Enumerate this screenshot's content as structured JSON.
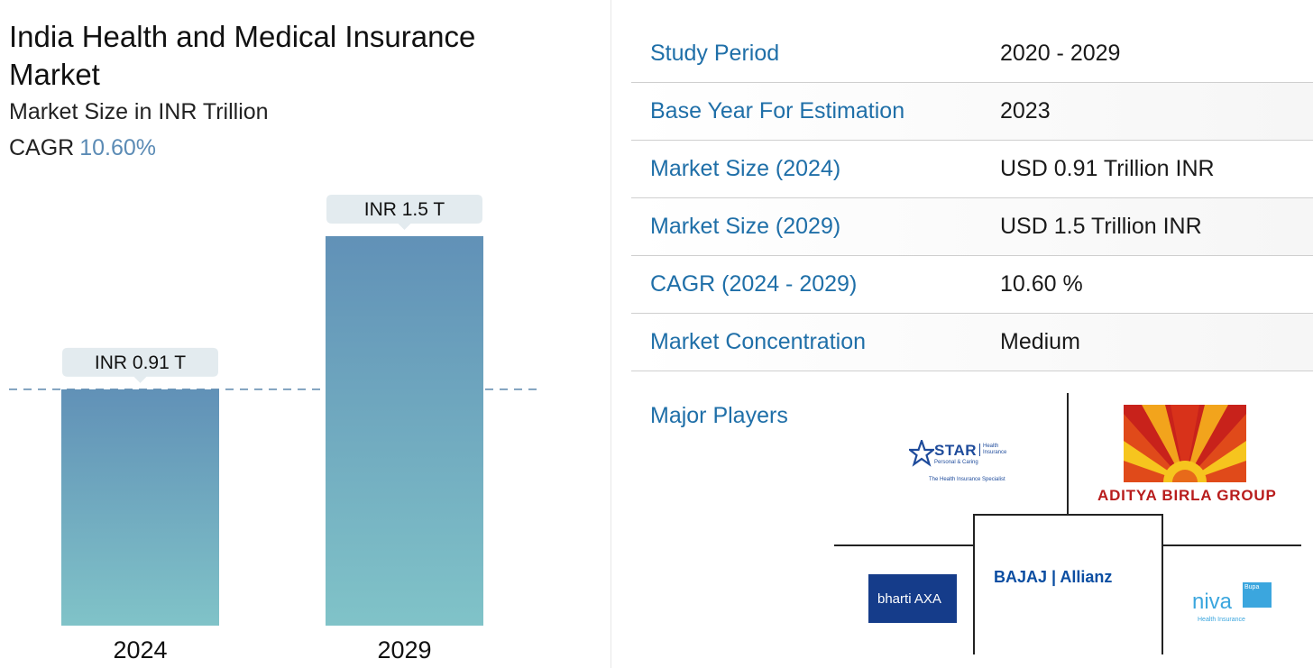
{
  "header": {
    "title": "India Health and Medical Insurance Market",
    "subtitle": "Market Size in INR Trillion",
    "cagr_label": "CAGR",
    "cagr_value": "10.60%"
  },
  "chart_data": {
    "type": "bar",
    "title": "India Health and Medical Insurance Market",
    "ylabel": "Market Size in INR Trillion",
    "xlabel": "",
    "categories": [
      "2024",
      "2029"
    ],
    "values": [
      0.91,
      1.5
    ],
    "data_labels": [
      "INR 0.91 T",
      "INR 1.5 T"
    ],
    "ylim": [
      0,
      1.5
    ],
    "grid": false,
    "reference_line": {
      "value": 0.91,
      "style": "dashed"
    },
    "colors": {
      "bar_top": "#6191b7",
      "bar_bottom": "#80c3c8",
      "label_bg": "#e3ebef",
      "dash": "#5b86ac"
    }
  },
  "table": {
    "rows": [
      {
        "key": "Study Period",
        "value": "2020 - 2029"
      },
      {
        "key": "Base Year For Estimation",
        "value": "2023"
      },
      {
        "key": "Market Size (2024)",
        "value": "USD 0.91 Trillion INR"
      },
      {
        "key": "Market Size (2029)",
        "value": "USD 1.5 Trillion INR"
      },
      {
        "key": "CAGR (2024 - 2029)",
        "value": "10.60 %"
      },
      {
        "key": "Market Concentration",
        "value": "Medium"
      }
    ],
    "major_players_label": "Major Players"
  },
  "players": {
    "star": {
      "name": "STAR",
      "sub": "Health Insurance",
      "sub2": "Personal & Caring",
      "tagline": "The Health Insurance Specialist"
    },
    "aditya": {
      "name": "ADITYA BIRLA GROUP"
    },
    "bajaj": {
      "name": "BAJAJ | Allianz"
    },
    "bharti": {
      "name": "bharti AXA"
    },
    "niva": {
      "name": "niva",
      "badge": "Bupa",
      "tagline": "Health Insurance"
    }
  },
  "colors": {
    "key_text": "#1f6fa8",
    "accent": "#5b8bb5"
  }
}
